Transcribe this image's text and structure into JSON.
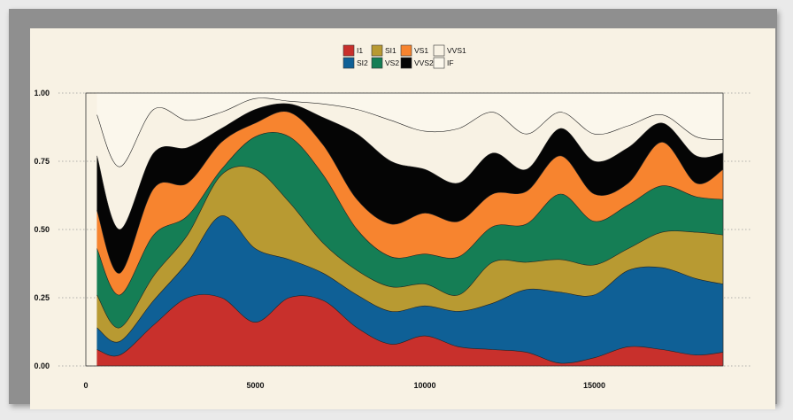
{
  "chart_data": {
    "type": "area",
    "stacking": "fill",
    "legend_position": "top-center",
    "grid": "horizontal dotted",
    "xlim": [
      0,
      18800
    ],
    "ylim": [
      0,
      1
    ],
    "x_ticks": [
      0,
      5000,
      10000,
      15000
    ],
    "x_tick_labels": [
      "0",
      "5000",
      "10000",
      "15000"
    ],
    "y_ticks": [
      0,
      0.25,
      0.5,
      0.75,
      1.0
    ],
    "y_tick_labels": [
      "0.00",
      "0.25",
      "0.50",
      "0.75",
      "1.00"
    ],
    "x": [
      326,
      1000,
      2000,
      3000,
      4000,
      5000,
      6000,
      7000,
      8000,
      9000,
      10000,
      11000,
      12000,
      13000,
      14000,
      15000,
      16000,
      17000,
      18000,
      18800
    ],
    "series": [
      {
        "name": "I1",
        "color": "#c8302c",
        "cum": [
          0.06,
          0.04,
          0.15,
          0.25,
          0.25,
          0.16,
          0.25,
          0.24,
          0.14,
          0.08,
          0.11,
          0.07,
          0.06,
          0.05,
          0.01,
          0.03,
          0.07,
          0.06,
          0.04,
          0.05
        ]
      },
      {
        "name": "SI2",
        "color": "#0f6096",
        "cum": [
          0.14,
          0.09,
          0.24,
          0.38,
          0.55,
          0.43,
          0.39,
          0.34,
          0.26,
          0.2,
          0.22,
          0.2,
          0.23,
          0.28,
          0.27,
          0.26,
          0.35,
          0.36,
          0.32,
          0.3
        ]
      },
      {
        "name": "SI1",
        "color": "#b89a32",
        "cum": [
          0.26,
          0.14,
          0.33,
          0.48,
          0.7,
          0.72,
          0.6,
          0.45,
          0.35,
          0.29,
          0.3,
          0.26,
          0.38,
          0.38,
          0.39,
          0.37,
          0.43,
          0.49,
          0.49,
          0.48
        ]
      },
      {
        "name": "VS2",
        "color": "#157e55",
        "cum": [
          0.43,
          0.26,
          0.48,
          0.55,
          0.72,
          0.84,
          0.84,
          0.7,
          0.5,
          0.4,
          0.41,
          0.4,
          0.51,
          0.52,
          0.63,
          0.53,
          0.59,
          0.66,
          0.62,
          0.61
        ]
      },
      {
        "name": "VS1",
        "color": "#f7842f",
        "cum": [
          0.57,
          0.34,
          0.65,
          0.67,
          0.82,
          0.89,
          0.93,
          0.81,
          0.61,
          0.52,
          0.56,
          0.53,
          0.63,
          0.64,
          0.77,
          0.63,
          0.67,
          0.82,
          0.67,
          0.72
        ]
      },
      {
        "name": "VVS2",
        "color": "#050505",
        "cum": [
          0.77,
          0.5,
          0.78,
          0.8,
          0.87,
          0.94,
          0.96,
          0.91,
          0.85,
          0.75,
          0.72,
          0.67,
          0.78,
          0.72,
          0.87,
          0.75,
          0.8,
          0.89,
          0.77,
          0.78
        ]
      },
      {
        "name": "VVS1",
        "color": "#f8f2e4",
        "cum": [
          0.92,
          0.73,
          0.94,
          0.9,
          0.93,
          0.98,
          0.97,
          0.96,
          0.94,
          0.9,
          0.86,
          0.87,
          0.93,
          0.85,
          0.93,
          0.85,
          0.88,
          0.92,
          0.84,
          0.83
        ]
      },
      {
        "name": "IF",
        "color": "#fbf7ec",
        "cum": [
          1,
          1,
          1,
          1,
          1,
          1,
          1,
          1,
          1,
          1,
          1,
          1,
          1,
          1,
          1,
          1,
          1,
          1,
          1,
          1
        ]
      }
    ],
    "legend_rows": [
      [
        "I1",
        "SI1",
        "VS1",
        "VVS1"
      ],
      [
        "SI2",
        "VS2",
        "VVS2",
        "IF"
      ]
    ]
  }
}
